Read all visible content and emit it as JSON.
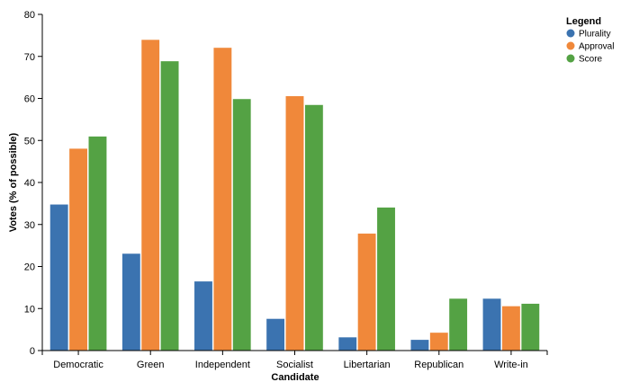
{
  "chart_data": {
    "type": "bar",
    "xlabel": "Candidate",
    "ylabel": "Votes (% of possible)",
    "ylim": [
      0,
      80
    ],
    "yticks": [
      0,
      10,
      20,
      30,
      40,
      50,
      60,
      70,
      80
    ],
    "grid": false,
    "legend": {
      "title": "Legend",
      "placement": "top-right"
    },
    "categories": [
      "Democratic",
      "Green",
      "Independent",
      "Socialist",
      "Libertarian",
      "Republican",
      "Write-in"
    ],
    "series": [
      {
        "name": "Plurality",
        "color": "#3b73b0",
        "values": [
          34.8,
          23.1,
          16.5,
          7.6,
          3.2,
          2.6,
          12.4
        ]
      },
      {
        "name": "Approval",
        "color": "#f0883a",
        "values": [
          48.1,
          74.0,
          72.1,
          60.6,
          27.9,
          4.3,
          10.6
        ]
      },
      {
        "name": "Score",
        "color": "#54a244",
        "values": [
          51.0,
          68.9,
          59.9,
          58.5,
          34.1,
          12.4,
          11.2
        ]
      }
    ]
  }
}
